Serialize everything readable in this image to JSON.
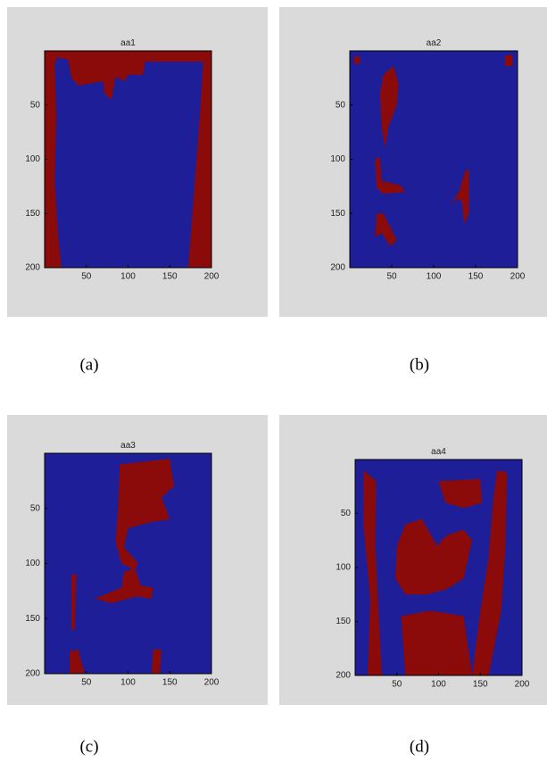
{
  "chart_data": [
    {
      "type": "image",
      "title": "aa1",
      "caption": "(a)",
      "xlim": [
        0,
        200
      ],
      "xticks": [
        50,
        100,
        150,
        200
      ],
      "ylim": [
        0,
        200
      ],
      "yticks": [
        50,
        100,
        150,
        200
      ],
      "y_reversed": true,
      "colors": [
        "#1e1e98",
        "#8b0a0a"
      ]
    },
    {
      "type": "image",
      "title": "aa2",
      "caption": "(b)",
      "xlim": [
        0,
        200
      ],
      "xticks": [
        50,
        100,
        150,
        200
      ],
      "ylim": [
        0,
        200
      ],
      "yticks": [
        50,
        100,
        150,
        200
      ],
      "y_reversed": true,
      "colors": [
        "#1e1e98",
        "#8b0a0a"
      ]
    },
    {
      "type": "image",
      "title": "aa3",
      "caption": "(c)",
      "xlim": [
        0,
        200
      ],
      "xticks": [
        50,
        100,
        150,
        200
      ],
      "ylim": [
        0,
        200
      ],
      "yticks": [
        50,
        100,
        150,
        200
      ],
      "y_reversed": true,
      "colors": [
        "#1e1e98",
        "#8b0a0a"
      ]
    },
    {
      "type": "image",
      "title": "aa4",
      "caption": "(d)",
      "xlim": [
        0,
        200
      ],
      "xticks": [
        50,
        100,
        150,
        200
      ],
      "ylim": [
        0,
        200
      ],
      "yticks": [
        50,
        100,
        150,
        200
      ],
      "y_reversed": true,
      "colors": [
        "#1e1e98",
        "#8b0a0a"
      ]
    }
  ]
}
